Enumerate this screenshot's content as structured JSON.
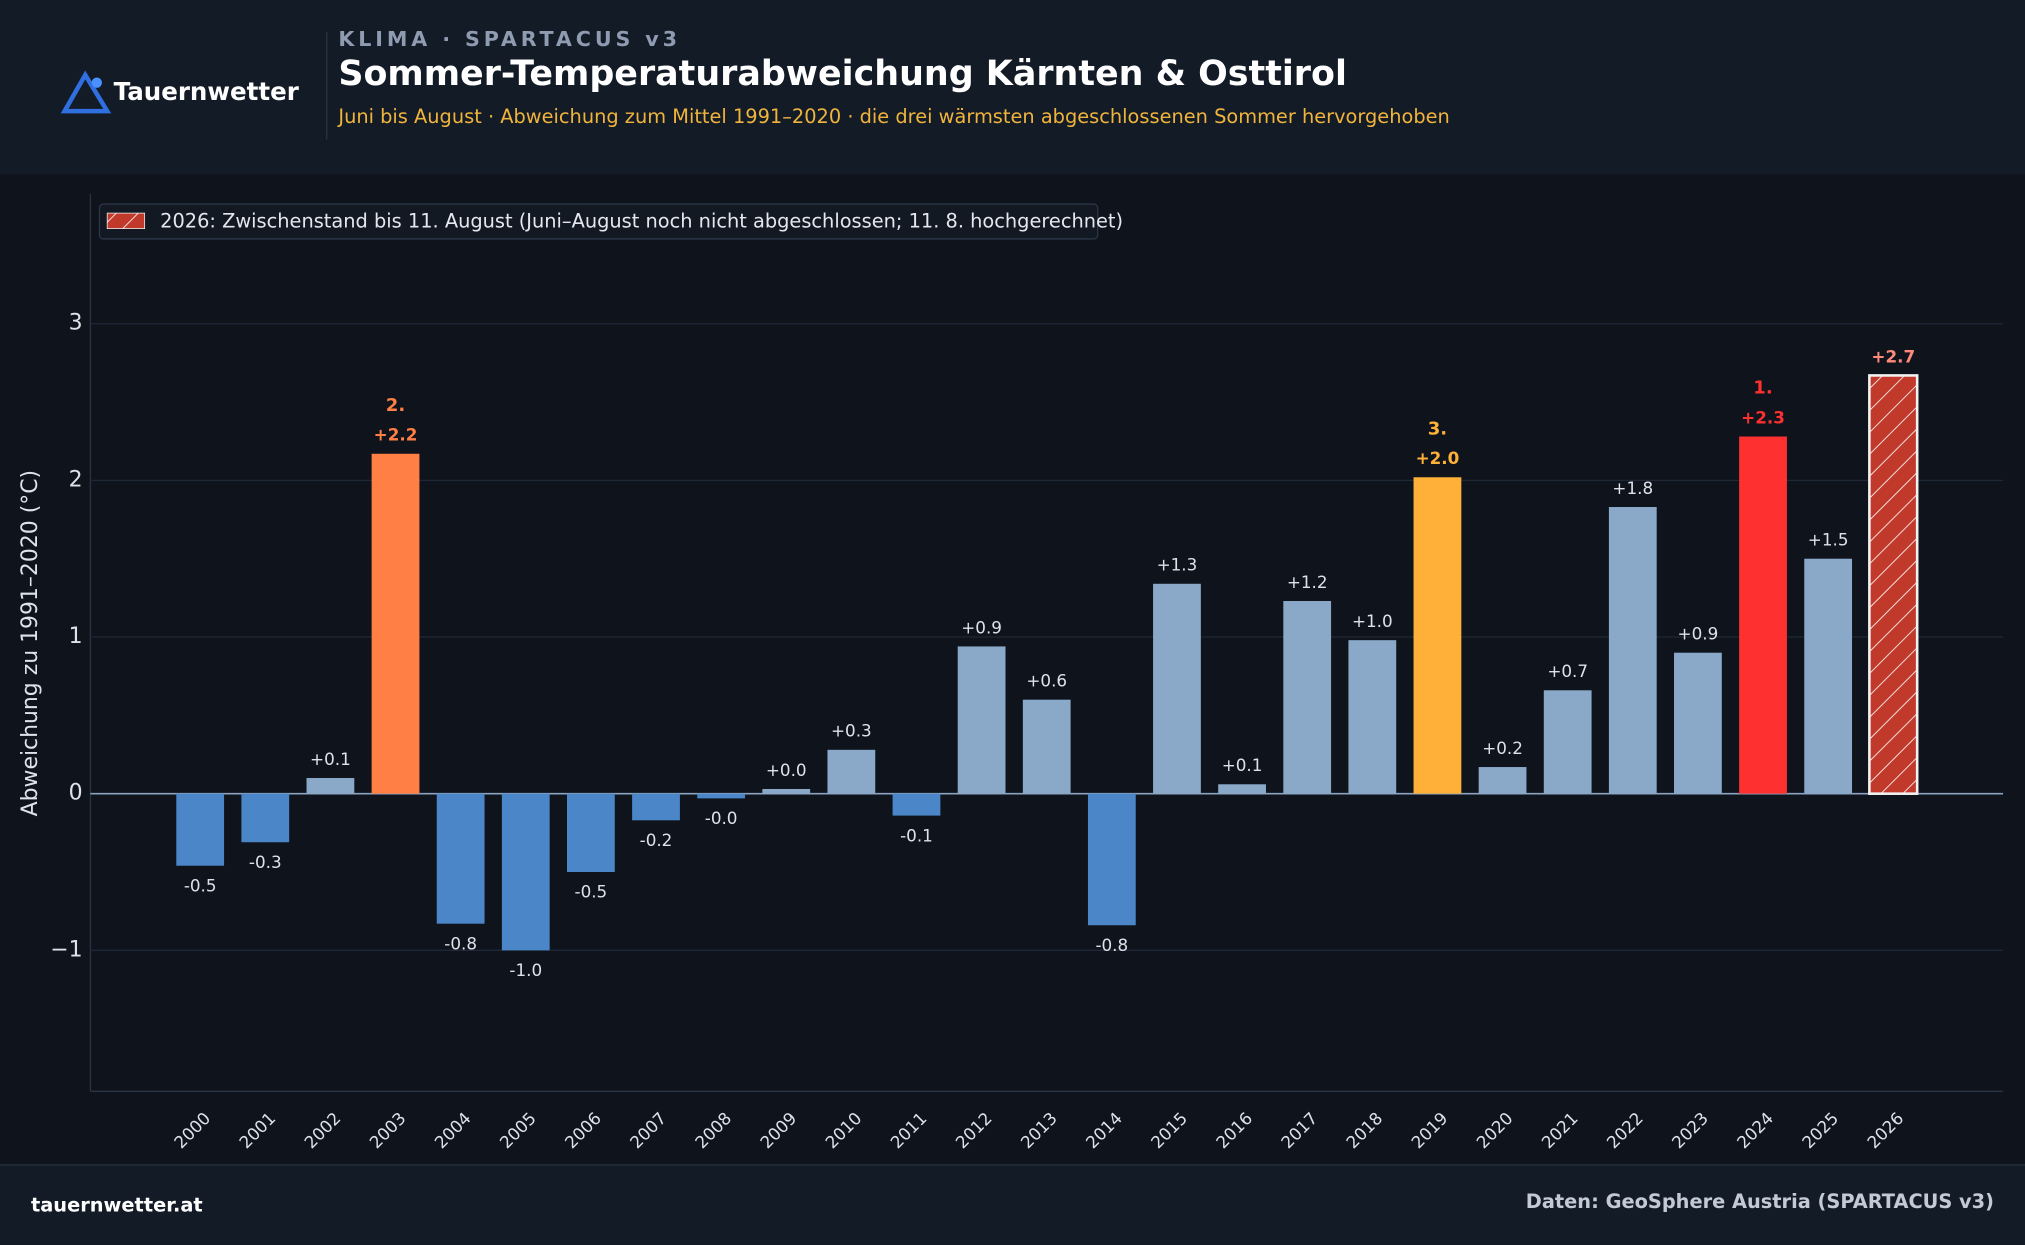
{
  "header": {
    "kicker": "KLIMA · SPARTACUS v3",
    "logo": "Tauernwetter"
  },
  "footer": {
    "site": "tauernwetter.at",
    "source": "Daten: GeoSphere Austria (SPARTACUS v3)"
  },
  "chart_data": {
    "type": "bar",
    "title": "Sommer-Temperaturabweichung Kärnten & Osttirol",
    "subtitle": "Juni bis August · Abweichung zum Mittel 1991–2020 · die drei wärmsten abgeschlossenen Sommer hervorgehoben",
    "y_label": "Abweichung zu 1991–2020 (°C)",
    "legend": "2026: Zwischenstand bis 11. August (Juni–August noch nicht abgeschlossen; 11. 8. hochgerechnet)",
    "legend_position": "upper left",
    "categories": [
      "2000",
      "2001",
      "2002",
      "2003",
      "2004",
      "2005",
      "2006",
      "2007",
      "2008",
      "2009",
      "2010",
      "2011",
      "2012",
      "2013",
      "2014",
      "2015",
      "2016",
      "2017",
      "2018",
      "2019",
      "2020",
      "2021",
      "2022",
      "2023",
      "2024",
      "2025",
      "2026"
    ],
    "values": [
      -0.46,
      -0.31,
      0.1,
      2.17,
      -0.83,
      -1.0,
      -0.5,
      -0.17,
      -0.03,
      0.03,
      0.28,
      -0.14,
      0.94,
      0.6,
      -0.84,
      1.34,
      0.06,
      1.23,
      0.98,
      2.02,
      0.17,
      0.66,
      1.83,
      0.9,
      2.28,
      1.5,
      2.67
    ],
    "value_labels": [
      "-0.5",
      "-0.3",
      "+0.1",
      "+2.2",
      "-0.8",
      "-1.0",
      "-0.5",
      "-0.2",
      "-0.0",
      "+0.0",
      "+0.3",
      "-0.1",
      "+0.9",
      "+0.6",
      "-0.8",
      "+1.3",
      "+0.1",
      "+1.2",
      "+1.0",
      "+2.0",
      "+0.2",
      "+0.7",
      "+1.8",
      "+0.9",
      "+2.3",
      "+1.5",
      "+2.7"
    ],
    "rank_labels": [
      null,
      null,
      null,
      "2.",
      null,
      null,
      null,
      null,
      null,
      null,
      null,
      null,
      null,
      null,
      null,
      null,
      null,
      null,
      null,
      "3.",
      null,
      null,
      null,
      null,
      "1.",
      null,
      null
    ],
    "colors": [
      "#4a86c8",
      "#4a86c8",
      "#8aa9c8",
      "#ff7f45",
      "#4a86c8",
      "#4a86c8",
      "#4a86c8",
      "#4a86c8",
      "#4a86c8",
      "#8aa9c8",
      "#8aa9c8",
      "#4a86c8",
      "#8aa9c8",
      "#8aa9c8",
      "#4a86c8",
      "#8aa9c8",
      "#8aa9c8",
      "#8aa9c8",
      "#8aa9c8",
      "#ffb038",
      "#8aa9c8",
      "#8aa9c8",
      "#8aa9c8",
      "#8aa9c8",
      "#ff3030",
      "#8aa9c8",
      "#c0392b"
    ],
    "patterns": [
      null,
      null,
      null,
      null,
      null,
      null,
      null,
      null,
      null,
      null,
      null,
      null,
      null,
      null,
      null,
      null,
      null,
      null,
      null,
      null,
      null,
      null,
      null,
      null,
      null,
      null,
      "hatch"
    ],
    "ylim": [
      -1.9,
      3.83
    ],
    "yticks": [
      {
        "value": -1,
        "label": "−1"
      },
      0,
      1,
      2,
      3
    ],
    "grid": true
  }
}
